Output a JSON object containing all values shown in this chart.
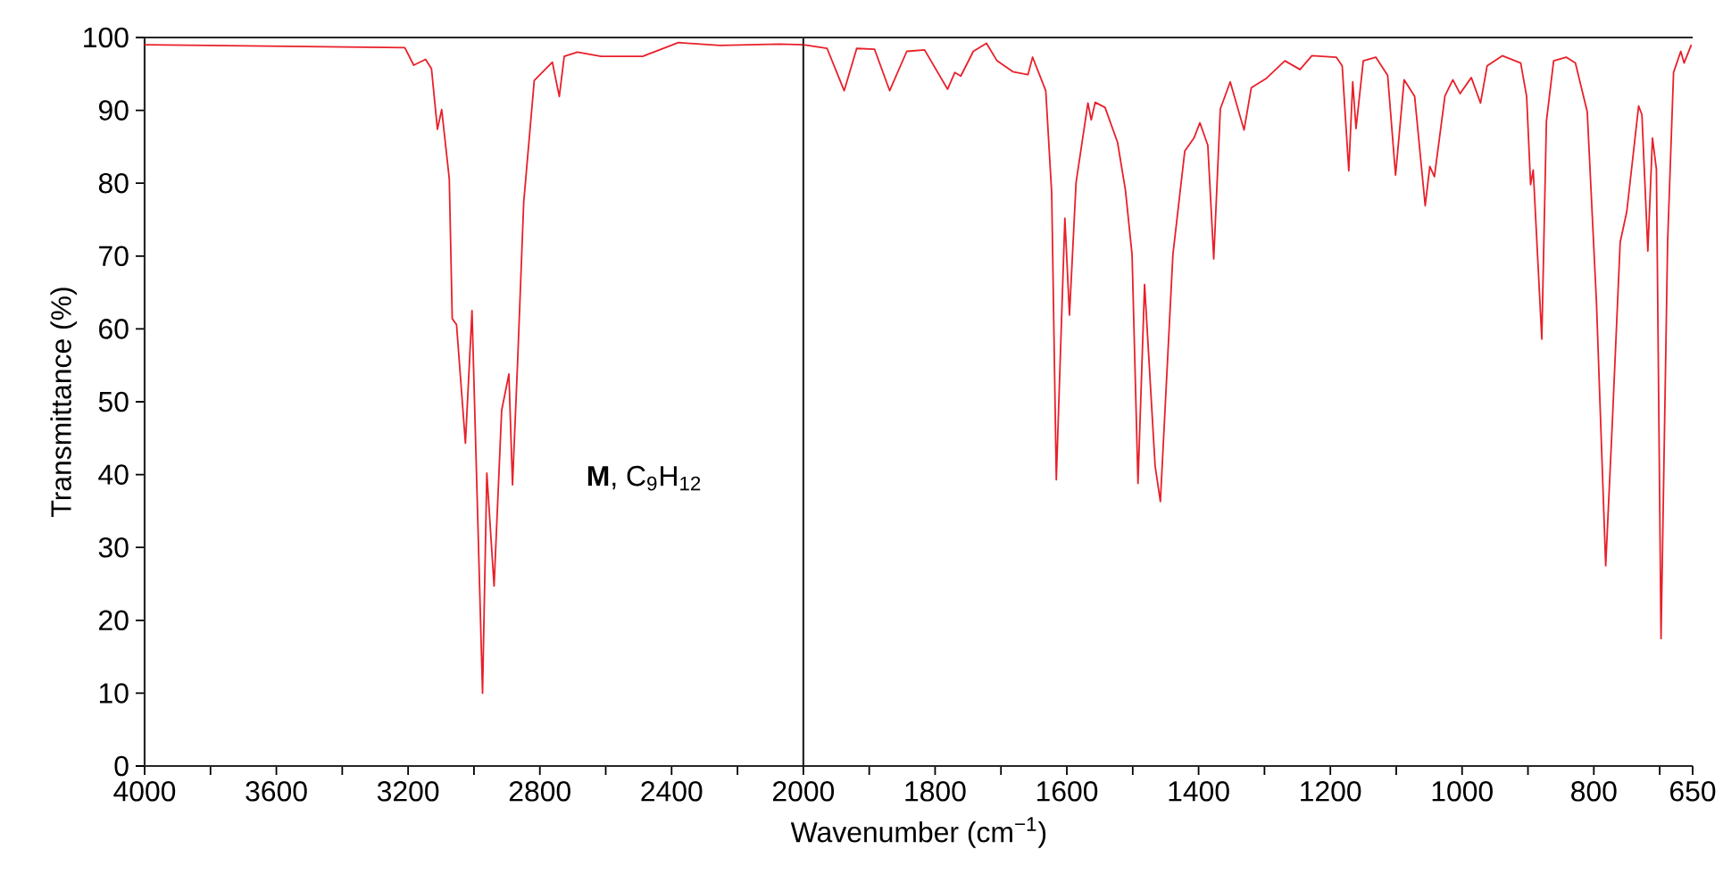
{
  "chart_data": [
    {
      "type": "line",
      "ylabel": "Transmittance (%)",
      "annotations": [
        "**M**, C$_{9}$H$_{12}$"
      ],
      "xlim": [
        4000,
        2000
      ],
      "ylim": [
        0,
        100
      ],
      "xticks": [
        4000,
        {
          "value": 3800,
          "label": null
        },
        3600,
        {
          "value": 3400,
          "label": null
        },
        3200,
        {
          "value": 3000,
          "label": null
        },
        2800,
        {
          "value": 2600,
          "label": null
        },
        2400,
        {
          "value": 2200,
          "label": null
        }
      ],
      "yticks": [
        0,
        10,
        20,
        30,
        40,
        50,
        60,
        70,
        80,
        90,
        100
      ],
      "color": "#e8202a",
      "x": [
        4000,
        3210,
        3183,
        3147,
        3129,
        3111,
        3098,
        3075,
        3066,
        3053,
        3026,
        3006,
        2974,
        2961,
        2939,
        2916,
        2894,
        2883,
        2867,
        2849,
        2817,
        2762,
        2741,
        2726,
        2686,
        2614,
        2488,
        2379,
        2253,
        2072,
        2000
      ],
      "values": [
        99,
        98.6,
        96.2,
        97.0,
        95.7,
        87.4,
        90.1,
        80.6,
        61.4,
        60.6,
        44.3,
        62.5,
        10.0,
        40.2,
        24.7,
        48.8,
        53.8,
        38.6,
        56.1,
        77.4,
        94.1,
        96.6,
        91.9,
        97.4,
        98,
        97.4,
        97.4,
        99.3,
        98.9,
        99.1,
        99.0
      ]
    },
    {
      "type": "line",
      "xlabel": "Wavenumber (cm$^{−1}$)",
      "tick_labels": "x",
      "xlim": [
        2000,
        650
      ],
      "ylim": [
        0,
        100
      ],
      "xticks": [
        2000,
        {
          "value": 1900,
          "label": null
        },
        1800,
        {
          "value": 1700,
          "label": null
        },
        1600,
        {
          "value": 1500,
          "label": null
        },
        1400,
        {
          "value": 1300,
          "label": null
        },
        1200,
        {
          "value": 1100,
          "label": null
        },
        1000,
        {
          "value": 900,
          "label": null
        },
        800,
        {
          "value": 700,
          "label": null
        },
        650
      ],
      "color": "#e8202a",
      "x": [
        2000,
        1964,
        1938,
        1919,
        1892,
        1869,
        1843,
        1816,
        1781,
        1770,
        1761,
        1742,
        1722,
        1706,
        1682,
        1659,
        1652,
        1632,
        1623,
        1616,
        1603,
        1596,
        1586,
        1568,
        1563,
        1557,
        1542,
        1523,
        1511,
        1501,
        1492,
        1482,
        1466,
        1458,
        1439,
        1421,
        1407,
        1398,
        1386,
        1377,
        1367,
        1352,
        1331,
        1320,
        1297,
        1269,
        1246,
        1228,
        1191,
        1182,
        1172,
        1166,
        1161,
        1150,
        1131,
        1113,
        1101,
        1088,
        1072,
        1056,
        1049,
        1042,
        1026,
        1014,
        1003,
        986,
        972,
        962,
        939,
        911,
        902,
        896,
        892,
        879,
        872,
        861,
        842,
        828,
        810,
        796,
        782,
        772,
        760,
        750,
        732,
        727,
        718,
        711,
        705,
        698,
        688,
        679,
        668,
        663,
        652
      ],
      "values": [
        99.0,
        98.5,
        92.7,
        98.5,
        98.4,
        92.7,
        98.1,
        98.3,
        92.9,
        95.2,
        94.7,
        98.1,
        99.2,
        96.8,
        95.3,
        94.9,
        97.3,
        92.7,
        78.6,
        39.3,
        75.2,
        61.9,
        80.1,
        91.0,
        88.7,
        91.1,
        90.4,
        85.6,
        79.0,
        70.2,
        38.8,
        66.1,
        41.2,
        36.3,
        70.2,
        84.4,
        86.2,
        88.3,
        85.2,
        69.6,
        90.2,
        93.9,
        87.3,
        93.1,
        94.4,
        96.8,
        95.6,
        97.5,
        97.3,
        96.1,
        81.7,
        93.9,
        87.5,
        96.8,
        97.3,
        94.8,
        81.1,
        94.2,
        91.9,
        76.9,
        82.3,
        80.9,
        92.0,
        94.2,
        92.3,
        94.5,
        91.0,
        96.1,
        97.5,
        96.5,
        91.9,
        79.8,
        81.8,
        58.6,
        88.5,
        96.8,
        97.3,
        96.5,
        89.8,
        63.6,
        27.5,
        47.0,
        71.9,
        76.1,
        90.6,
        89.4,
        70.7,
        86.2,
        81.9,
        17.5,
        71.9,
        95.2,
        98.1,
        96.5,
        99.0
      ]
    }
  ]
}
